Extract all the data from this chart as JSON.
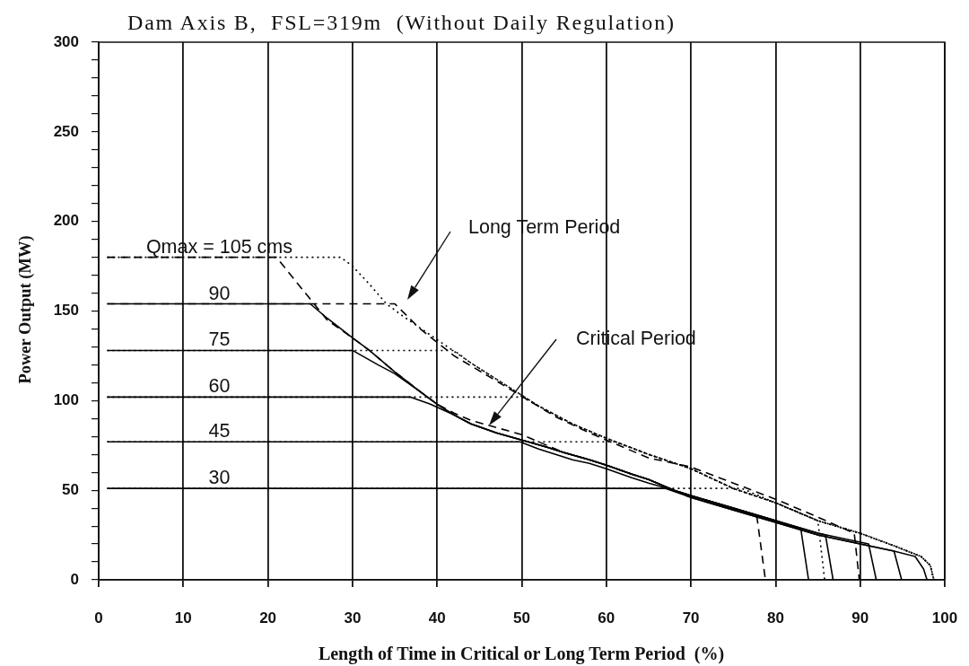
{
  "chart_data": {
    "type": "line",
    "title": "Dam Axis B,  FSL=319m  (Without Daily Regulation)",
    "xlabel": "Length of Time in Critical or Long Term Period  (%)",
    "ylabel": "Power Output (MW)",
    "xlim": [
      0,
      100
    ],
    "xticks": [
      0,
      10,
      20,
      30,
      40,
      50,
      60,
      70,
      80,
      90,
      100
    ],
    "ylim": [
      0,
      300
    ],
    "yticks": [
      0,
      {
        "value": 10,
        "label": null
      },
      {
        "value": 20,
        "label": null
      },
      {
        "value": 30,
        "label": null
      },
      {
        "value": 40,
        "label": null
      },
      50,
      {
        "value": 60,
        "label": null
      },
      {
        "value": 70,
        "label": null
      },
      {
        "value": 80,
        "label": null
      },
      {
        "value": 90,
        "label": null
      },
      100,
      {
        "value": 110,
        "label": null
      },
      {
        "value": 120,
        "label": null
      },
      {
        "value": 130,
        "label": null
      },
      {
        "value": 140,
        "label": null
      },
      150,
      {
        "value": 160,
        "label": null
      },
      {
        "value": 170,
        "label": null
      },
      {
        "value": 180,
        "label": null
      },
      {
        "value": 190,
        "label": null
      },
      200,
      {
        "value": 210,
        "label": null
      },
      {
        "value": 220,
        "label": null
      },
      {
        "value": 230,
        "label": null
      },
      {
        "value": 240,
        "label": null
      },
      250,
      {
        "value": 260,
        "label": null
      },
      {
        "value": 270,
        "label": null
      },
      {
        "value": 280,
        "label": null
      },
      {
        "value": 290,
        "label": null
      },
      300
    ],
    "grid": "x",
    "series": [
      {
        "name": "Qmax = 105 cms",
        "color": "#000000",
        "line_style": "dashed",
        "x": [
          1,
          21,
          27,
          30,
          32,
          35,
          38,
          40,
          42,
          44,
          47,
          50,
          53,
          55,
          58,
          60,
          63,
          65,
          68,
          70,
          75,
          77.8,
          78.8
        ],
        "values": [
          180,
          180,
          145,
          135,
          128,
          116,
          105,
          98,
          93,
          89,
          85,
          81,
          75,
          71,
          67,
          64,
          59,
          56,
          50,
          47,
          40,
          35,
          0
        ]
      },
      {
        "color": "#000000",
        "line_style": "dotted",
        "x": [
          1,
          28.6,
          30,
          32,
          34,
          36,
          40,
          44,
          48,
          52,
          56,
          60,
          65,
          70,
          75,
          80,
          85,
          90,
          94,
          97.2,
          98.3,
          98.7
        ],
        "values": [
          180,
          180,
          175,
          165,
          154,
          147,
          134,
          121,
          109,
          97,
          87,
          79,
          70,
          62,
          51,
          43,
          33,
          26,
          19,
          13,
          8,
          0
        ]
      },
      {
        "name": "90",
        "color": "#000000",
        "line_style": "solid",
        "x": [
          1,
          25,
          27,
          30,
          32,
          35,
          38,
          40,
          42,
          44,
          47,
          50,
          53,
          55,
          58,
          60,
          63,
          65,
          68,
          70,
          75,
          80,
          83,
          83.9
        ],
        "values": [
          154,
          154,
          146,
          135,
          128,
          116,
          105,
          98,
          92,
          87,
          82,
          78,
          74,
          71,
          67,
          64,
          59,
          56,
          50,
          47,
          40,
          33,
          28,
          0
        ]
      },
      {
        "color": "#000000",
        "line_style": "dashed",
        "x": [
          1,
          35,
          38,
          42,
          47,
          54,
          58,
          65,
          70,
          75,
          80,
          85,
          89.3,
          89.9
        ],
        "values": [
          154,
          154,
          140,
          125,
          111,
          91,
          82,
          68,
          63,
          54,
          45,
          35,
          26,
          0
        ]
      },
      {
        "name": "75",
        "color": "#000000",
        "line_style": "solid",
        "x": [
          1,
          30,
          33,
          35,
          38,
          40,
          42,
          44,
          47,
          50,
          53,
          55,
          58,
          60,
          63,
          65,
          68,
          70,
          75,
          80,
          85,
          85.9,
          86.8
        ],
        "values": [
          128,
          128,
          120,
          115,
          105,
          98,
          92,
          87,
          82,
          78,
          74,
          71,
          67,
          64,
          59,
          56,
          50,
          47,
          40,
          33,
          26,
          25,
          0
        ]
      },
      {
        "color": "#000000",
        "line_style": "dotted",
        "x": [
          1,
          42,
          44,
          48,
          52,
          56,
          60,
          65,
          70,
          75,
          80,
          85,
          85.8
        ],
        "values": [
          128,
          128,
          121,
          109,
          97,
          87,
          79,
          70,
          62,
          51,
          43,
          33,
          0
        ]
      },
      {
        "name": "60",
        "color": "#000000",
        "line_style": "solid",
        "x": [
          1,
          36.8,
          39.2,
          42,
          44,
          47,
          50,
          53,
          55,
          58,
          60,
          63,
          65,
          68,
          70,
          75,
          80,
          85,
          90,
          91,
          91.9
        ],
        "values": [
          102,
          102,
          98,
          92,
          87,
          82,
          78,
          74,
          71,
          67,
          64,
          59,
          56,
          50,
          47,
          40,
          33,
          26,
          21,
          20,
          0
        ]
      },
      {
        "color": "#000000",
        "line_style": "dotted",
        "x": [
          1,
          50,
          52,
          56,
          60,
          65,
          70,
          75,
          80,
          85,
          90,
          94,
          97.2,
          98.3,
          98.7
        ],
        "values": [
          102,
          102,
          97,
          87,
          79,
          70,
          62,
          51,
          43,
          33,
          26,
          19,
          13,
          8,
          0
        ]
      },
      {
        "name": "45",
        "color": "#000000",
        "line_style": "solid",
        "x": [
          1,
          49.8,
          52,
          56,
          58,
          60,
          63,
          65,
          68,
          70,
          75,
          80,
          85,
          90,
          94,
          94.9
        ],
        "values": [
          77,
          77,
          73,
          67,
          65,
          62,
          57,
          54,
          50,
          46,
          39,
          32,
          25,
          20,
          16,
          0
        ]
      },
      {
        "color": "#000000",
        "line_style": "dotted",
        "x": [
          1,
          61,
          65,
          70,
          75,
          80,
          85,
          90,
          94,
          97.2,
          98.3,
          98.7
        ],
        "values": [
          77,
          77,
          70,
          62,
          51,
          43,
          33,
          26,
          19,
          13,
          8,
          0
        ]
      },
      {
        "name": "30",
        "color": "#000000",
        "line_style": "solid",
        "x": [
          1,
          67,
          70,
          75,
          80,
          85,
          90,
          94,
          96.5,
          97.5,
          97.9
        ],
        "values": [
          51,
          51,
          46,
          39,
          32,
          25,
          20,
          16,
          13,
          6,
          0
        ]
      },
      {
        "color": "#000000",
        "line_style": "dotted",
        "x": [
          1,
          76,
          80,
          85,
          90,
          94,
          97.2,
          98.3,
          98.7
        ],
        "values": [
          51,
          51,
          43,
          33,
          26,
          19,
          13,
          8,
          0
        ]
      }
    ],
    "annotations": [
      "Long Term Period",
      "Critical Period"
    ]
  }
}
